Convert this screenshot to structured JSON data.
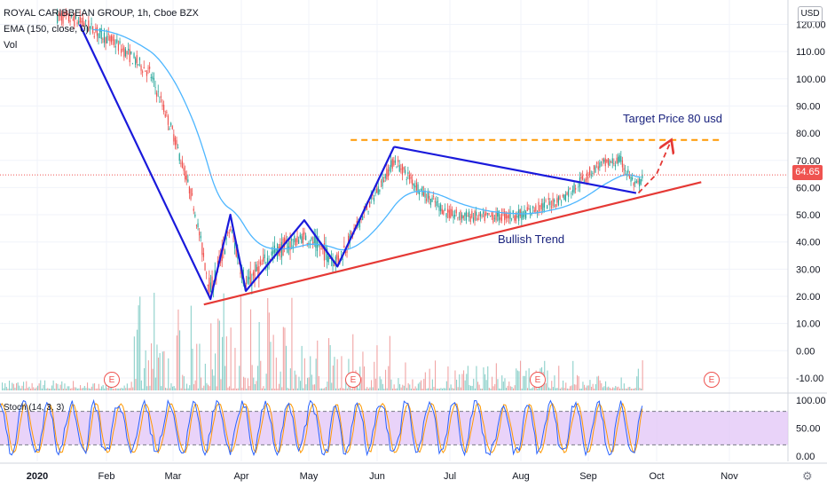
{
  "header": {
    "symbol_line": "ROYAL CARIBBEAN GROUP, 1h, Cboe BZX",
    "ema_label": "EMA (150, close, 0)",
    "vol_label": "Vol",
    "stoch_label": "Stoch (14, 3, 3)"
  },
  "currency_button": "USD",
  "last_price": "64.65",
  "annotations": {
    "target": "Target Price 80 usd",
    "trend": "Bullish Trend"
  },
  "earnings_label": "E",
  "colors": {
    "ema": "#4db6ff",
    "pattern": "#1a1adb",
    "trendline": "#e53935",
    "target": "#ff9800",
    "projection": "#e53935",
    "stoch_band": "#e1c4f7"
  },
  "chart_data": {
    "type": "line",
    "price_axis": {
      "ticks": [
        "120.00",
        "110.00",
        "100.00",
        "90.00",
        "80.00",
        "70.00",
        "60.00",
        "50.00",
        "40.00",
        "30.00",
        "20.00",
        "10.00",
        "0.00",
        "-10.00"
      ],
      "ylim": [
        -12,
        122
      ]
    },
    "stoch_axis": {
      "ticks": [
        "100.00",
        "50.00",
        "0.00"
      ],
      "ylim": [
        0,
        100
      ]
    },
    "x_ticks": [
      "2020",
      "Feb",
      "Mar",
      "Apr",
      "May",
      "Jun",
      "Jul",
      "Aug",
      "Sep",
      "Oct",
      "Nov"
    ],
    "pattern_points": [
      {
        "x": "2020-01-20",
        "y": 120
      },
      {
        "x": "2020-03-18",
        "y": 19
      },
      {
        "x": "2020-03-27",
        "y": 50
      },
      {
        "x": "2020-04-03",
        "y": 22
      },
      {
        "x": "2020-04-29",
        "y": 48
      },
      {
        "x": "2020-05-14",
        "y": 31
      },
      {
        "x": "2020-06-08",
        "y": 75
      }
    ],
    "flag_upper": [
      {
        "x": "2020-06-08",
        "y": 75
      },
      {
        "x": "2020-09-22",
        "y": 58
      }
    ],
    "support_line": [
      {
        "x": "2020-03-15",
        "y": 17
      },
      {
        "x": "2020-10-20",
        "y": 62
      }
    ],
    "target_line": {
      "from": "2020-05-20",
      "to": "2020-10-28",
      "y": 77.5
    },
    "projection": [
      {
        "x": "2020-09-23",
        "y": 58
      },
      {
        "x": "2020-10-01",
        "y": 65
      },
      {
        "x": "2020-10-07",
        "y": 77
      }
    ],
    "current_price": 64.65,
    "earnings_dates": [
      "2020-01-30",
      "2020-05-18",
      "2020-08-12",
      "2020-10-29"
    ],
    "stoch_levels": [
      80,
      20
    ]
  }
}
